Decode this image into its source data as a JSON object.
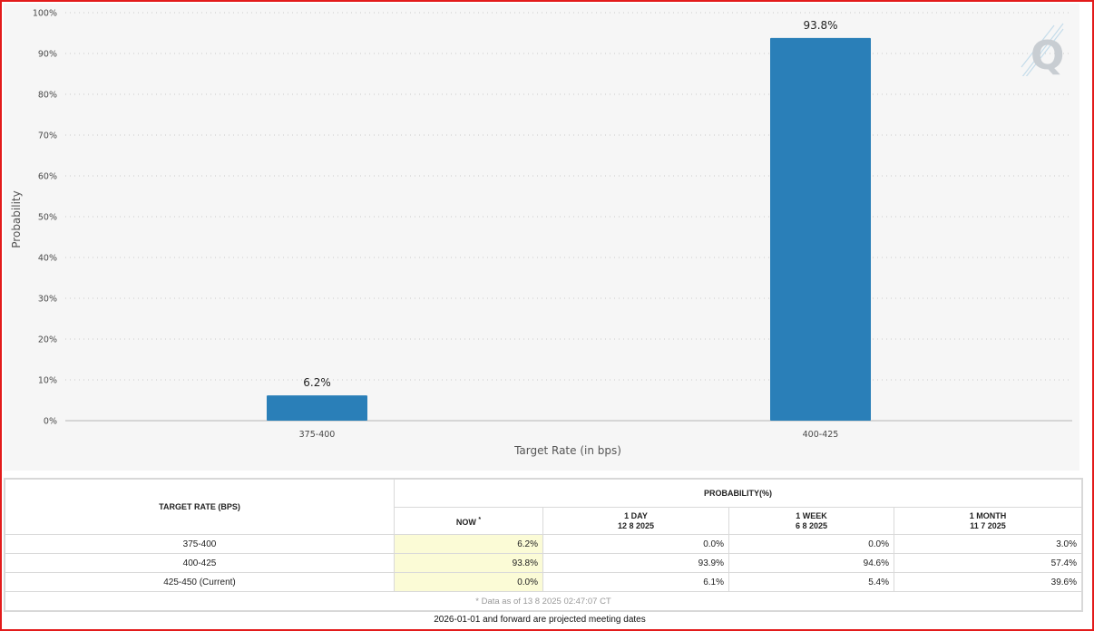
{
  "chart_data": {
    "type": "bar",
    "categories": [
      "375-400",
      "400-425"
    ],
    "values": [
      6.2,
      93.8
    ],
    "data_labels": [
      "6.2%",
      "93.8%"
    ],
    "xlabel": "Target Rate (in bps)",
    "ylabel": "Probability",
    "ylim": [
      0,
      100
    ],
    "yticks": [
      "0%",
      "10%",
      "20%",
      "30%",
      "40%",
      "50%",
      "60%",
      "70%",
      "80%",
      "90%",
      "100%"
    ],
    "grid": true,
    "bar_color": "#2a7fb8"
  },
  "logo": {
    "icon": "q-logo-icon"
  },
  "table": {
    "target_rate_header": "TARGET RATE (BPS)",
    "probability_header": "PROBABILITY(%)",
    "columns": [
      {
        "label": "NOW",
        "marker": "*",
        "date": ""
      },
      {
        "label": "1 DAY",
        "date": "12 8 2025"
      },
      {
        "label": "1 WEEK",
        "date": "6 8 2025"
      },
      {
        "label": "1 MONTH",
        "date": "11 7 2025"
      }
    ],
    "rows": [
      {
        "rate": "375-400",
        "now": "6.2%",
        "day": "0.0%",
        "week": "0.0%",
        "month": "3.0%"
      },
      {
        "rate": "400-425",
        "now": "93.8%",
        "day": "93.9%",
        "week": "94.6%",
        "month": "57.4%"
      },
      {
        "rate": "425-450 (Current)",
        "now": "0.0%",
        "day": "6.1%",
        "week": "5.4%",
        "month": "39.6%"
      }
    ],
    "footnote": "* Data as of 13 8 2025 02:47:07 CT"
  },
  "projected_note": "2026-01-01 and forward are projected meeting dates"
}
